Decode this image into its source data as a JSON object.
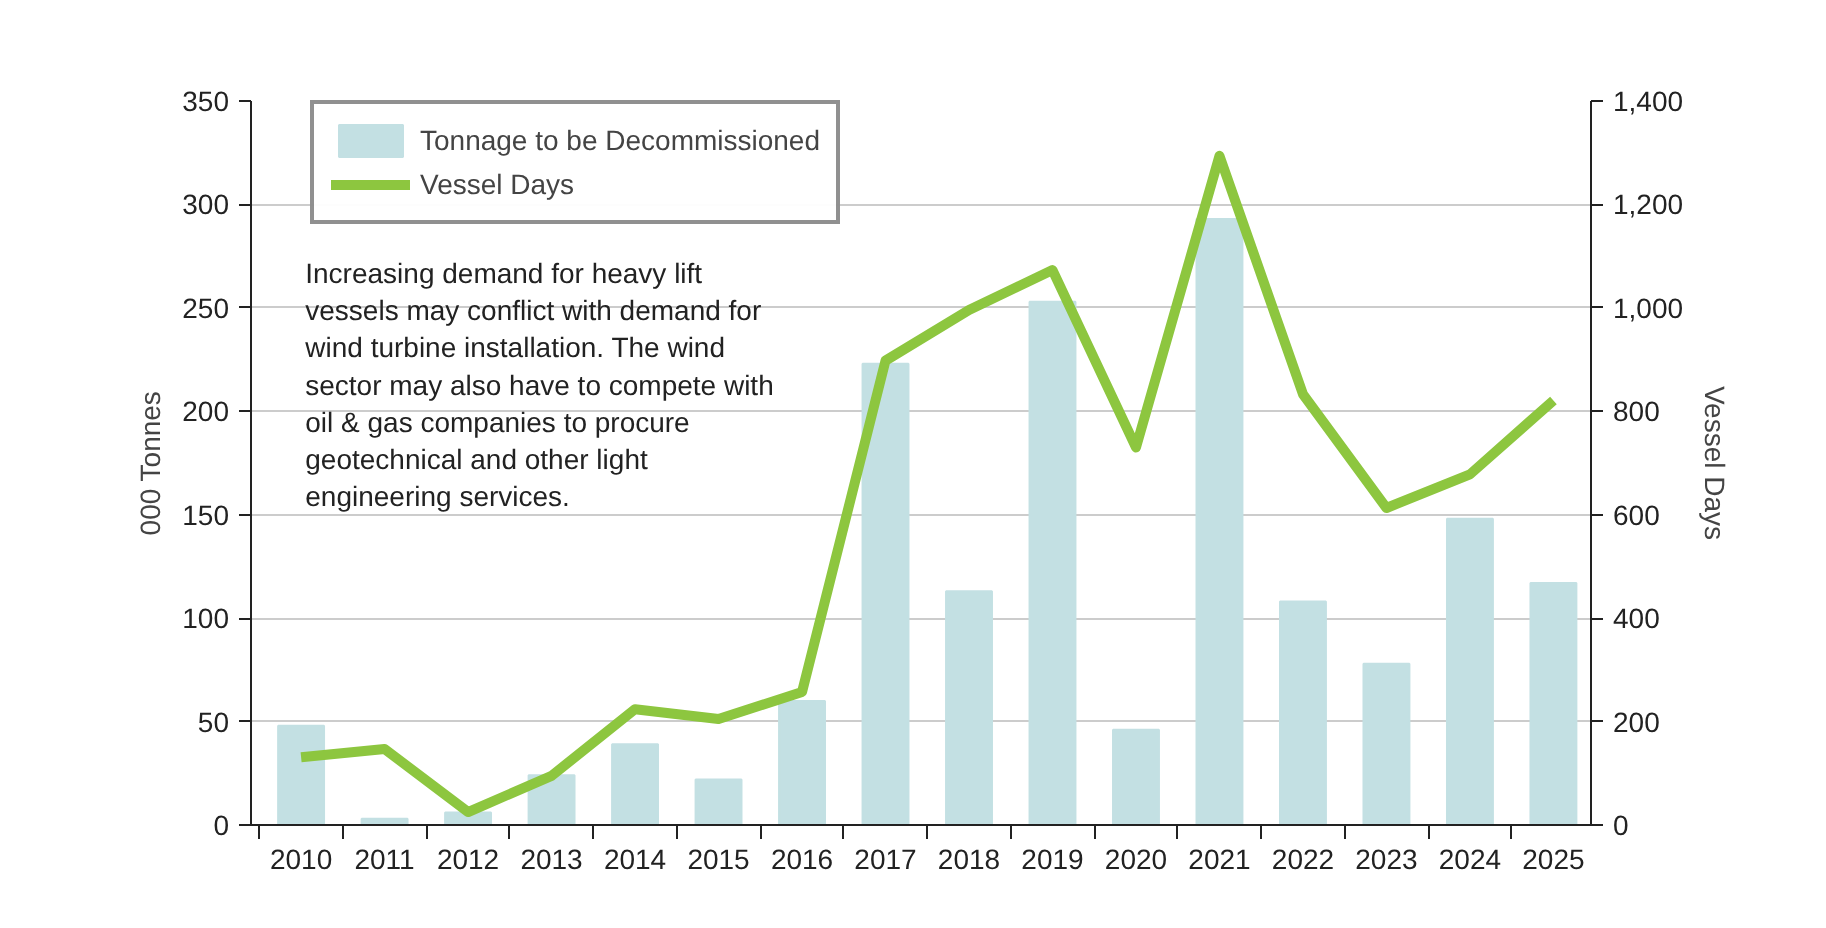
{
  "chart_data": {
    "type": "bar",
    "categories": [
      "2010",
      "2011",
      "2012",
      "2013",
      "2014",
      "2015",
      "2016",
      "2017",
      "2018",
      "2019",
      "2020",
      "2021",
      "2022",
      "2023",
      "2024",
      "2025"
    ],
    "ylabel": "000 Tonnes",
    "y2label": "Vessel Days",
    "ylim": [
      0,
      350
    ],
    "yticks": [
      0,
      50,
      100,
      150,
      200,
      250,
      300,
      350
    ],
    "y2lim": [
      0,
      1400
    ],
    "y2ticks": [
      0,
      200,
      400,
      600,
      800,
      {
        "value": 1000,
        "label": "1,000"
      },
      {
        "value": 1200,
        "label": "1,200"
      },
      {
        "value": 1400,
        "label": "1,400"
      }
    ],
    "series": [
      {
        "name": "Tonnage to be Decommissioned",
        "color": "#c3e0e3",
        "values": [
          48,
          3,
          6,
          24,
          39,
          22,
          60,
          223,
          113,
          253,
          46,
          293,
          108,
          78,
          148,
          117
        ]
      },
      {
        "name": "Vessel Days",
        "type": "line",
        "axis": "y2",
        "color": "#8dc63f",
        "line_style": "solid",
        "values": [
          131,
          147,
          25,
          95,
          224,
          205,
          257,
          898,
          996,
          1073,
          730,
          1294,
          833,
          613,
          678,
          821
        ]
      }
    ],
    "annotations": [
      "Increasing demand for heavy lift vessels may conflict with demand for wind turbine installation. The wind sector may also have to compete with oil & gas companies to procure geotechnical and other light engineering services."
    ],
    "grid": "y",
    "legend": "top left",
    "marker": "none"
  }
}
